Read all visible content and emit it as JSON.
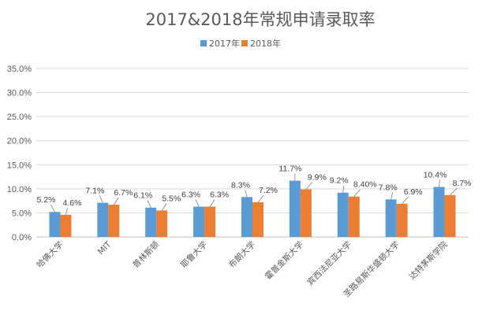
{
  "chart_data": {
    "type": "bar",
    "title": "2017&2018年常规申请录取率",
    "xlabel": "",
    "ylabel": "",
    "ylim": [
      0,
      0.35
    ],
    "yticks": [
      "0.0%",
      "5.0%",
      "10.0%",
      "15.0%",
      "20.0%",
      "25.0%",
      "30.0%",
      "35.0%"
    ],
    "grid": true,
    "legend_position": "top-center",
    "categories": [
      "哈佛大学",
      "MIT",
      "普林斯顿",
      "耶鲁大学",
      "布朗大学",
      "霍普金斯大学",
      "宾西法尼亚大学",
      "圣路易斯华盛顿大学",
      "达特茅斯学院"
    ],
    "series": [
      {
        "name": "2017年",
        "color": "#5b9bd5",
        "values": [
          0.052,
          0.071,
          0.061,
          0.063,
          0.083,
          0.117,
          0.092,
          0.078,
          0.104
        ],
        "labels": [
          "5.2%",
          "7.1%",
          "6.1%",
          "6.3%",
          "8.3%",
          "11.7%",
          "9.2%",
          "7.8%",
          "10.4%"
        ]
      },
      {
        "name": "2018年",
        "color": "#ed7d31",
        "values": [
          0.046,
          0.067,
          0.055,
          0.063,
          0.072,
          0.099,
          0.084,
          0.069,
          0.087
        ],
        "labels": [
          "4.6%",
          "6.7%",
          "5.5%",
          "6.3%",
          "7.2%",
          "9.9%",
          "8.40%",
          "6.9%",
          "8.7%"
        ]
      }
    ]
  }
}
